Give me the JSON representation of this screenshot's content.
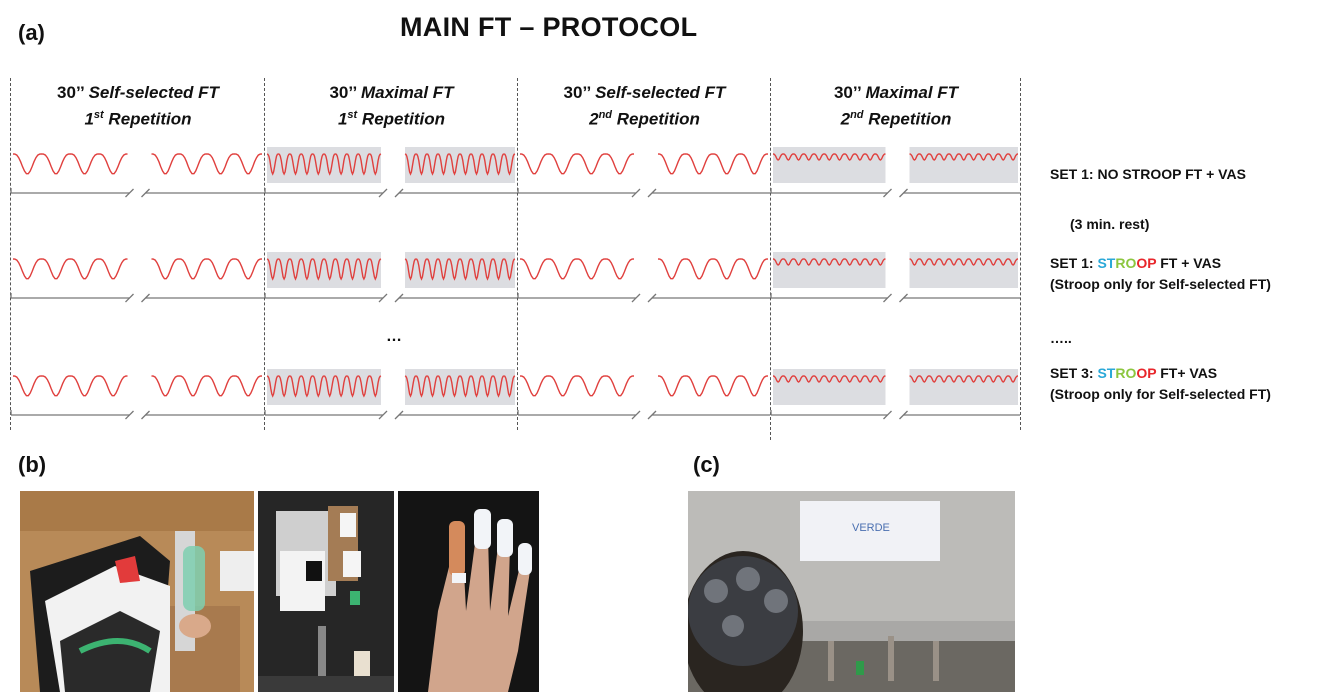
{
  "panels": {
    "a": "(a)",
    "b": "(b)",
    "c": "(c)"
  },
  "title": "MAIN FT – PROTOCOL",
  "columns": [
    {
      "prefix": "30’’ ",
      "name": "Self-selected FT",
      "rep_num": "1",
      "rep_sup": "st",
      "rep_word": " Repetition"
    },
    {
      "prefix": "30’’ ",
      "name": "Maximal FT",
      "rep_num": "1",
      "rep_sup": "st",
      "rep_word": " Repetition"
    },
    {
      "prefix": "30’’ ",
      "name": "Self-selected FT",
      "rep_num": "2",
      "rep_sup": "nd",
      "rep_word": " Repetition"
    },
    {
      "prefix": "30’’ ",
      "name": "Maximal FT",
      "rep_num": "2",
      "rep_sup": "nd",
      "rep_word": " Repetition"
    }
  ],
  "ellipsis_mid": "…",
  "sets": {
    "set1": "SET 1: NO STROOP FT + VAS",
    "rest": "(3 min. rest)",
    "set1b_prefix": "SET 1: ",
    "set1b_suffix": " FT + VAS",
    "set1b_note": "(Stroop only for Self-selected FT)",
    "dots": "…..",
    "set3_prefix": "SET 3: ",
    "set3_suffix": " FT+ VAS",
    "set3_note": "(Stroop only for Self-selected FT)"
  },
  "stroop_letters": [
    {
      "t": "ST",
      "color": "#29a8d8"
    },
    {
      "t": "RO",
      "color": "#8cc63f"
    },
    {
      "t": "OP",
      "color": "#e8262b"
    }
  ],
  "photo_c_text": "VERDE",
  "colors": {
    "signal": "#e0403e",
    "shade": "#dcdde1",
    "axis": "#777777"
  }
}
